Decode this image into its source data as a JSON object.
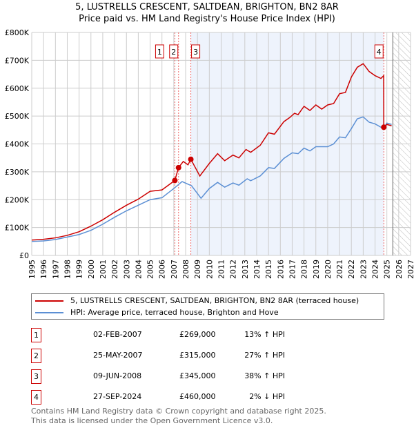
{
  "chart_data": {
    "type": "line",
    "title": "5, LUSTRELLS CRESCENT, SALTDEAN, BRIGHTON, BN2 8AR",
    "subtitle": "Price paid vs. HM Land Registry's House Price Index (HPI)",
    "xlim": [
      1995,
      2027
    ],
    "ylim": [
      0,
      800000
    ],
    "x_ticks": [
      "1995",
      "1996",
      "1997",
      "1998",
      "1999",
      "2000",
      "2001",
      "2002",
      "2003",
      "2004",
      "2005",
      "2006",
      "2007",
      "2008",
      "2009",
      "2010",
      "2011",
      "2012",
      "2013",
      "2014",
      "2015",
      "2016",
      "2017",
      "2018",
      "2019",
      "2020",
      "2021",
      "2022",
      "2023",
      "2024",
      "2025",
      "2026",
      "2027"
    ],
    "y_ticks": [
      {
        "v": 0,
        "label": "£0"
      },
      {
        "v": 100000,
        "label": "£100K"
      },
      {
        "v": 200000,
        "label": "£200K"
      },
      {
        "v": 300000,
        "label": "£300K"
      },
      {
        "v": 400000,
        "label": "£400K"
      },
      {
        "v": 500000,
        "label": "£500K"
      },
      {
        "v": 600000,
        "label": "£600K"
      },
      {
        "v": 700000,
        "label": "£700K"
      },
      {
        "v": 800000,
        "label": "£800K"
      }
    ],
    "grid": true,
    "shaded_range": [
      2008.44,
      2024.74
    ],
    "forecast_hatch_from": 2025.5,
    "series": [
      {
        "name": "5, LUSTRELLS CRESCENT, SALTDEAN, BRIGHTON, BN2 8AR (terraced house)",
        "color": "#cc0000",
        "x": [
          1995,
          1996,
          1997,
          1998,
          1999,
          2000,
          2001,
          2002,
          2003,
          2004,
          2005,
          2006,
          2007.09,
          2007.4,
          2007.8,
          2008.2,
          2008.44,
          2009.2,
          2010,
          2010.7,
          2011.3,
          2012,
          2012.5,
          2013.1,
          2013.5,
          2014.3,
          2015,
          2015.5,
          2016.3,
          2016.8,
          2017.2,
          2017.5,
          2018,
          2018.5,
          2019,
          2019.5,
          2020,
          2020.5,
          2021,
          2021.5,
          2022,
          2022.5,
          2023,
          2023.5,
          2024,
          2024.5,
          2024.73,
          2024.74,
          2025,
          2025.4
        ],
        "y": [
          55000,
          58000,
          63000,
          72000,
          85000,
          105000,
          128000,
          155000,
          180000,
          202000,
          230000,
          235000,
          269000,
          315000,
          337000,
          325000,
          345000,
          285000,
          330000,
          365000,
          340000,
          360000,
          350000,
          380000,
          370000,
          395000,
          440000,
          435000,
          480000,
          495000,
          510000,
          505000,
          535000,
          520000,
          540000,
          525000,
          540000,
          545000,
          580000,
          585000,
          640000,
          675000,
          688000,
          660000,
          645000,
          635000,
          645000,
          460000,
          470000,
          465000
        ]
      },
      {
        "name": "HPI: Average price, terraced house, Brighton and Hove",
        "color": "#5b8fd4",
        "x": [
          1995,
          1996,
          1997,
          1998,
          1999,
          2000,
          2001,
          2002,
          2003,
          2004,
          2005,
          2006,
          2007,
          2007.7,
          2008.5,
          2009.3,
          2010,
          2010.7,
          2011.3,
          2012,
          2012.5,
          2013.2,
          2013.5,
          2014.3,
          2015,
          2015.5,
          2016.3,
          2017,
          2017.5,
          2018,
          2018.5,
          2019,
          2020,
          2020.5,
          2021,
          2021.5,
          2022,
          2022.5,
          2023,
          2023.5,
          2024,
          2024.7,
          2025,
          2025.4
        ],
        "y": [
          50000,
          52000,
          57000,
          66000,
          75000,
          90000,
          112000,
          137000,
          160000,
          180000,
          200000,
          207000,
          240000,
          265000,
          250000,
          205000,
          240000,
          262000,
          245000,
          260000,
          252000,
          275000,
          268000,
          285000,
          315000,
          312000,
          348000,
          368000,
          365000,
          385000,
          375000,
          390000,
          390000,
          400000,
          425000,
          422000,
          455000,
          490000,
          497000,
          478000,
          472000,
          455000,
          475000,
          470000
        ]
      }
    ],
    "sales": [
      {
        "n": "1",
        "x": 2007.09,
        "date": "02-FEB-2007",
        "price": 269000,
        "price_label": "£269,000",
        "hpi": "13% ↑ HPI"
      },
      {
        "n": "2",
        "x": 2007.4,
        "date": "25-MAY-2007",
        "price": 315000,
        "price_label": "£315,000",
        "hpi": "27% ↑ HPI"
      },
      {
        "n": "3",
        "x": 2008.44,
        "date": "09-JUN-2008",
        "price": 345000,
        "price_label": "£345,000",
        "hpi": "38% ↑ HPI"
      },
      {
        "n": "4",
        "x": 2024.74,
        "date": "27-SEP-2024",
        "price": 460000,
        "price_label": "£460,000",
        "hpi": "2% ↓ HPI"
      }
    ]
  },
  "legend": {
    "red": "5, LUSTRELLS CRESCENT, SALTDEAN, BRIGHTON, BN2 8AR (terraced house)",
    "blue": "HPI: Average price, terraced house, Brighton and Hove"
  },
  "footer": {
    "line1": "Contains HM Land Registry data © Crown copyright and database right 2025.",
    "line2": "This data is licensed under the Open Government Licence v3.0."
  }
}
